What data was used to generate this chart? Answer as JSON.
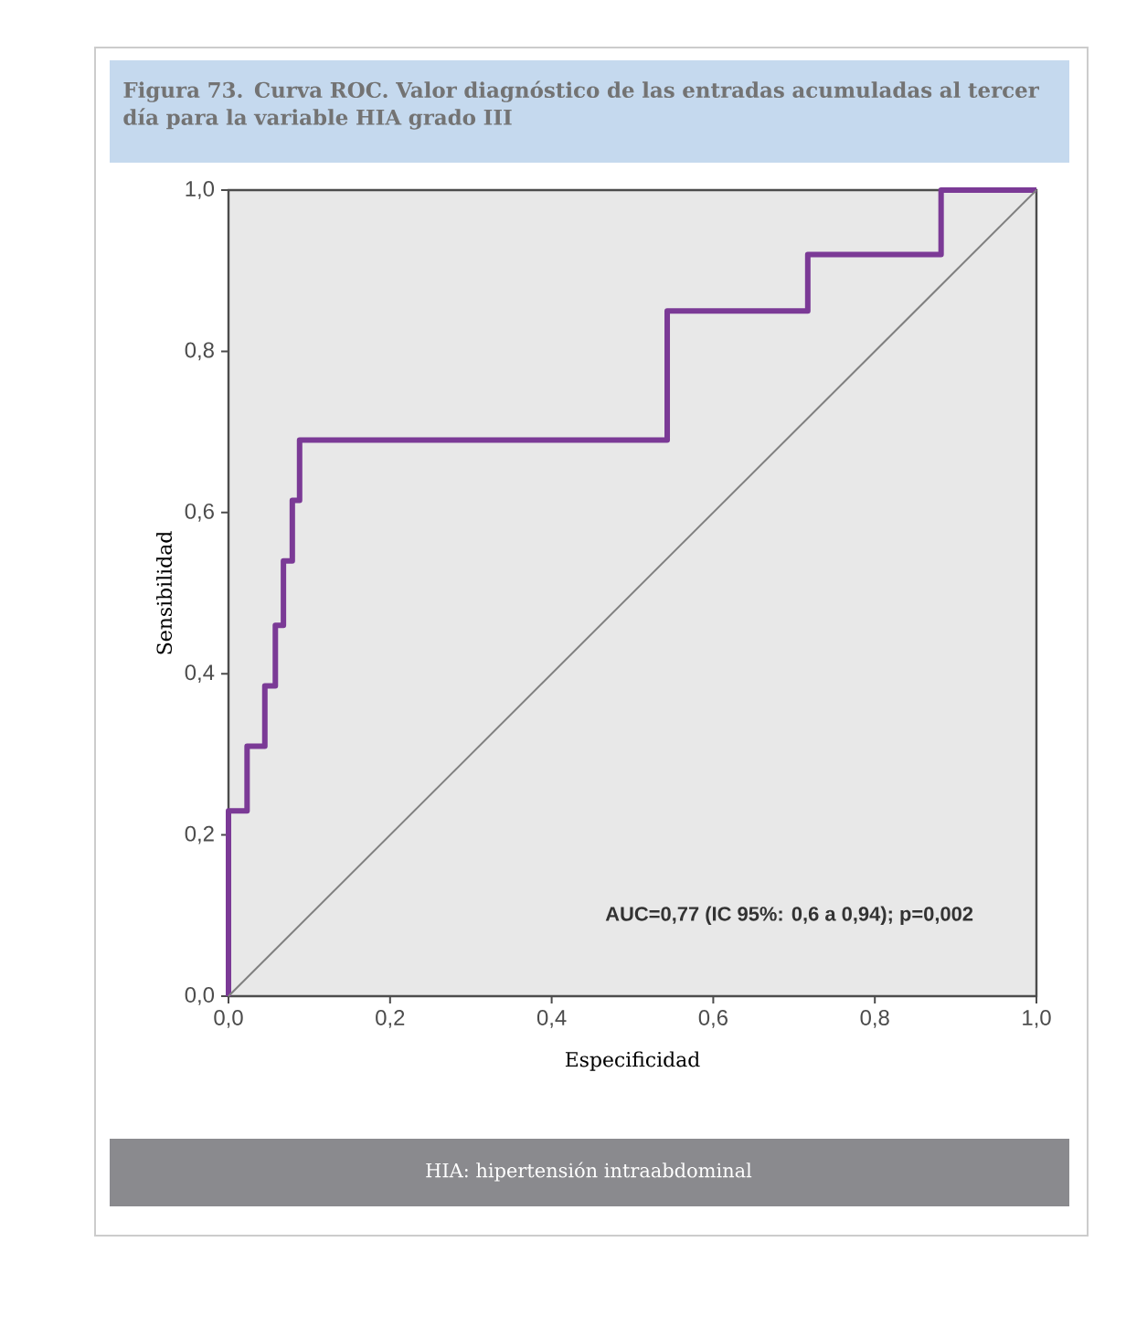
{
  "chart_data": {
    "type": "step",
    "title": "Figura 73. Curva ROC. Valor diagnóstico de las entradas acumuladas al tercer día para la variable HIA grado III",
    "xlabel": "Especificidad",
    "ylabel": "Sensibilidad",
    "series": [
      {
        "color": "#7b3a96",
        "x": [
          0,
          0.023,
          0.045,
          0.058,
          0.068,
          0.079,
          0.088,
          0.543,
          0.717,
          0.882,
          1.0
        ],
        "values": [
          0,
          0.23,
          0.31,
          0.385,
          0.46,
          0.54,
          0.615,
          0.69,
          0.85,
          0.92,
          1.0
        ]
      },
      {
        "type": "line",
        "color": "#808080",
        "x": [
          0,
          1.0
        ],
        "values": [
          0,
          1.0
        ]
      }
    ],
    "xlim": [
      0,
      1.0
    ],
    "ylim": [
      0,
      1.0
    ],
    "xticks": [
      {
        "value": 0,
        "label": "0,0"
      },
      {
        "value": 0.2,
        "label": "0,2"
      },
      {
        "value": 0.4,
        "label": "0,4"
      },
      {
        "value": 0.6,
        "label": "0,6"
      },
      {
        "value": 0.8,
        "label": "0,8"
      },
      {
        "value": 1.0,
        "label": "1,0"
      }
    ],
    "yticks": [
      {
        "value": 0,
        "label": "0,0"
      },
      {
        "value": 0.2,
        "label": "0,2"
      },
      {
        "value": 0.4,
        "label": "0,4"
      },
      {
        "value": 0.6,
        "label": "0,6"
      },
      {
        "value": 0.8,
        "label": "0,8"
      },
      {
        "value": 1.0,
        "label": "1,0"
      }
    ],
    "annotations": [
      "AUC=0,77 (IC 95%: 0,6 a 0,94); p=0,002",
      "HIA: hipertensión intraabdominal"
    ]
  }
}
